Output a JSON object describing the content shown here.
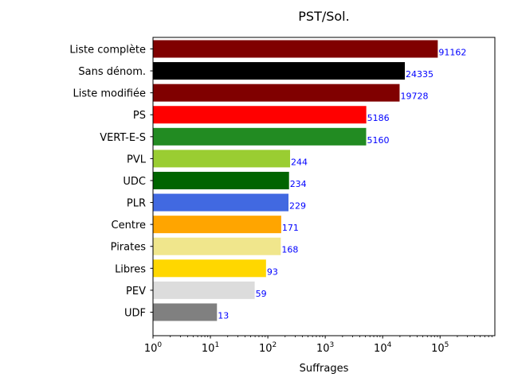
{
  "chart_data": {
    "type": "bar",
    "orientation": "horizontal",
    "title": "PST/Sol.",
    "xlabel": "Suffrages",
    "ylabel": "",
    "xscale": "log",
    "xlim": [
      1,
      900000
    ],
    "x_ticks": [
      {
        "value": 1,
        "base": "10",
        "exp": "0"
      },
      {
        "value": 10,
        "base": "10",
        "exp": "1"
      },
      {
        "value": 100,
        "base": "10",
        "exp": "2"
      },
      {
        "value": 1000,
        "base": "10",
        "exp": "3"
      },
      {
        "value": 10000,
        "base": "10",
        "exp": "4"
      },
      {
        "value": 100000,
        "base": "10",
        "exp": "5"
      }
    ],
    "grid": false,
    "legend": false,
    "value_label_color": "#0000ff",
    "categories": [
      "Liste complète",
      "Sans dénom.",
      "Liste modifiée",
      "PS",
      "VERT-E-S",
      "PVL",
      "UDC",
      "PLR",
      "Centre",
      "Pirates",
      "Libres",
      "PEV",
      "UDF"
    ],
    "values": [
      91162,
      24335,
      19728,
      5186,
      5160,
      244,
      234,
      229,
      171,
      168,
      93,
      59,
      13
    ],
    "value_labels": [
      "91162",
      "24335",
      "19728",
      "5186",
      "5160",
      "244",
      "234",
      "229",
      "171",
      "168",
      "93",
      "59",
      "13"
    ],
    "colors": [
      "#800000",
      "#000000",
      "#800000",
      "#ff0000",
      "#228b22",
      "#9acd32",
      "#006400",
      "#4169e1",
      "#ffa500",
      "#f0e68c",
      "#ffd700",
      "#dcdcdc",
      "#808080"
    ]
  }
}
